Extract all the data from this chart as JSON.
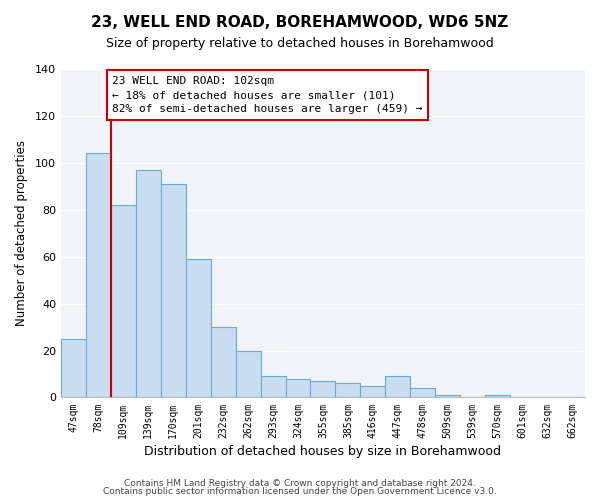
{
  "title": "23, WELL END ROAD, BOREHAMWOOD, WD6 5NZ",
  "subtitle": "Size of property relative to detached houses in Borehamwood",
  "xlabel": "Distribution of detached houses by size in Borehamwood",
  "ylabel": "Number of detached properties",
  "bar_labels": [
    "47sqm",
    "78sqm",
    "109sqm",
    "139sqm",
    "170sqm",
    "201sqm",
    "232sqm",
    "262sqm",
    "293sqm",
    "324sqm",
    "355sqm",
    "385sqm",
    "416sqm",
    "447sqm",
    "478sqm",
    "509sqm",
    "539sqm",
    "570sqm",
    "601sqm",
    "632sqm",
    "662sqm"
  ],
  "bar_heights": [
    25,
    104,
    82,
    97,
    91,
    59,
    30,
    20,
    9,
    8,
    7,
    6,
    5,
    9,
    4,
    1,
    0,
    1,
    0,
    0,
    0
  ],
  "bar_color": "#c8ddef",
  "bar_edge_color": "#6aaad4",
  "vline_color": "#cc0000",
  "annotation_title": "23 WELL END ROAD: 102sqm",
  "annotation_line1": "← 18% of detached houses are smaller (101)",
  "annotation_line2": "82% of semi-detached houses are larger (459) →",
  "annotation_box_color": "#ffffff",
  "annotation_box_edge": "#cc0000",
  "ylim": [
    0,
    140
  ],
  "yticks": [
    0,
    20,
    40,
    60,
    80,
    100,
    120,
    140
  ],
  "footer1": "Contains HM Land Registry data © Crown copyright and database right 2024.",
  "footer2": "Contains public sector information licensed under the Open Government Licence v3.0.",
  "bg_color": "#f0f4f8"
}
